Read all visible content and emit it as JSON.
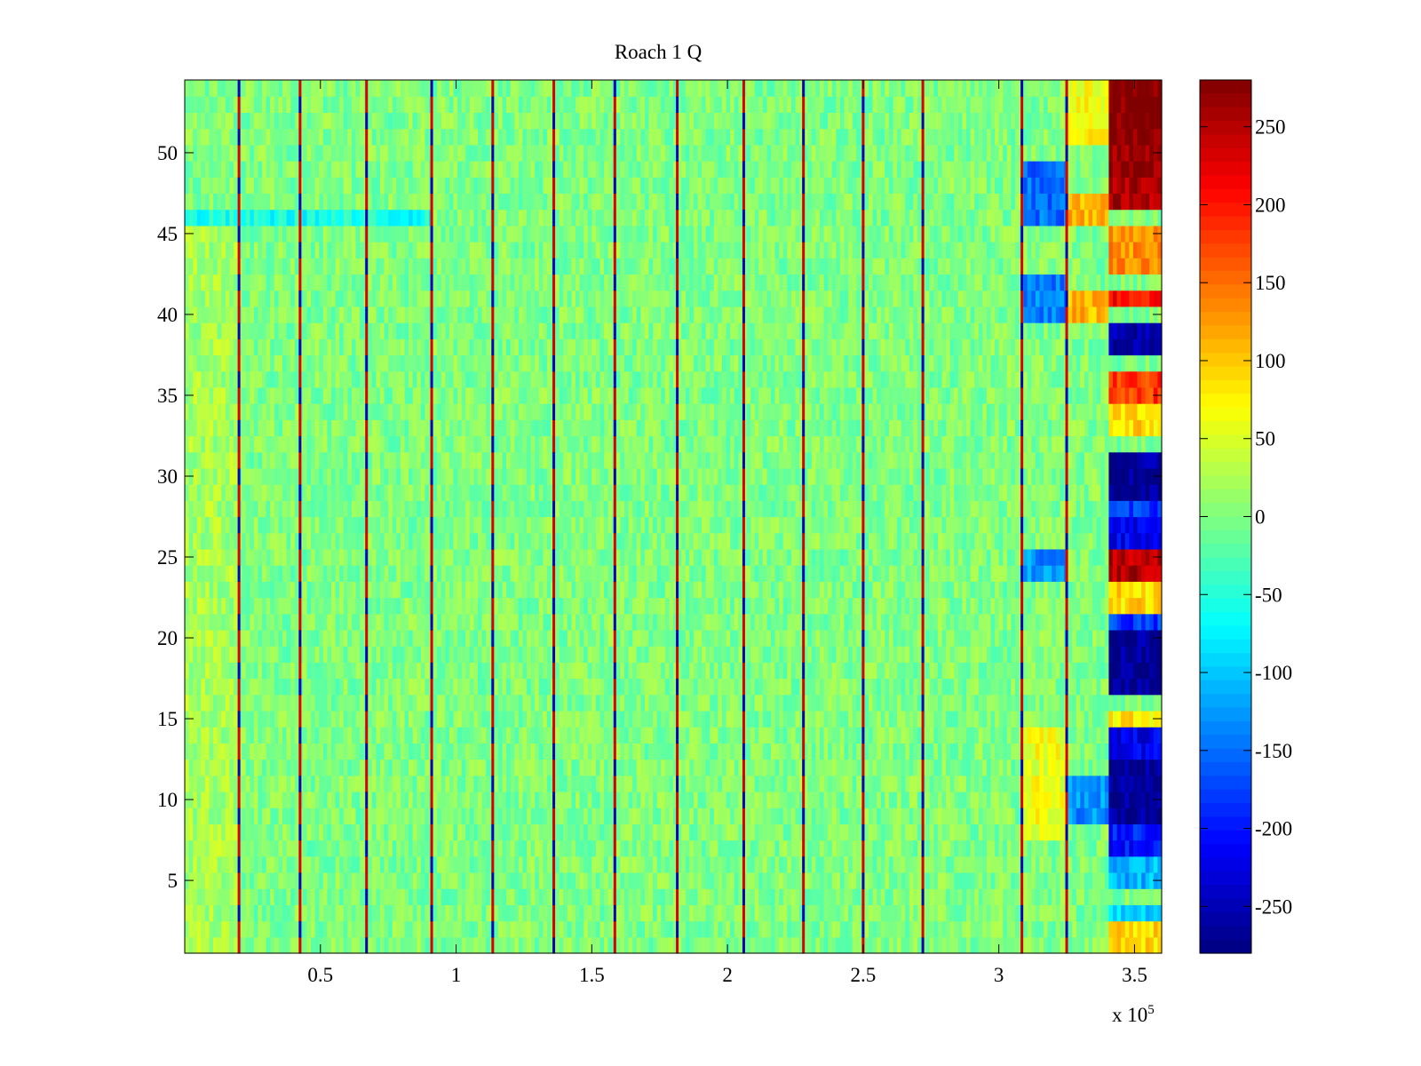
{
  "chart_data": {
    "type": "heatmap",
    "title": "Roach 1 Q",
    "xlabel": "",
    "ylabel": "",
    "xlim": [
      0,
      360000
    ],
    "ylim": [
      0.5,
      54.5
    ],
    "x_multiplier_label": "x 10",
    "x_multiplier_exponent": "5",
    "x_ticks": [
      {
        "value": 50000,
        "label": "0.5"
      },
      {
        "value": 100000,
        "label": "1"
      },
      {
        "value": 150000,
        "label": "1.5"
      },
      {
        "value": 200000,
        "label": "2"
      },
      {
        "value": 250000,
        "label": "2.5"
      },
      {
        "value": 300000,
        "label": "3"
      },
      {
        "value": 350000,
        "label": "3.5"
      }
    ],
    "y_ticks": [
      {
        "value": 5,
        "label": "5"
      },
      {
        "value": 10,
        "label": "10"
      },
      {
        "value": 15,
        "label": "15"
      },
      {
        "value": 20,
        "label": "20"
      },
      {
        "value": 25,
        "label": "25"
      },
      {
        "value": 30,
        "label": "30"
      },
      {
        "value": 35,
        "label": "35"
      },
      {
        "value": 40,
        "label": "40"
      },
      {
        "value": 45,
        "label": "45"
      },
      {
        "value": 50,
        "label": "50"
      }
    ],
    "colorbar": {
      "colormap": "jet",
      "clim": [
        -280,
        280
      ],
      "ticks": [
        {
          "value": 250,
          "label": "250"
        },
        {
          "value": 200,
          "label": "200"
        },
        {
          "value": 150,
          "label": "150"
        },
        {
          "value": 100,
          "label": "100"
        },
        {
          "value": 50,
          "label": "50"
        },
        {
          "value": 0,
          "label": "0"
        },
        {
          "value": -50,
          "label": "-50"
        },
        {
          "value": -100,
          "label": "-100"
        },
        {
          "value": -150,
          "label": "-150"
        },
        {
          "value": -200,
          "label": "-200"
        },
        {
          "value": -250,
          "label": "-250"
        }
      ]
    },
    "rows": 54,
    "background_level": 0,
    "spike_columns_x": [
      20000,
      42500,
      67000,
      91000,
      113500,
      136000,
      158500,
      181500,
      206000,
      228000,
      250000,
      272000,
      308500,
      325000
    ],
    "regions": [
      {
        "x": [
          0,
          20000
        ],
        "y": [
          1,
          45
        ],
        "level": 20
      },
      {
        "x": [
          0,
          91000
        ],
        "y": [
          46,
          46
        ],
        "level": -60
      },
      {
        "x": [
          308500,
          325000
        ],
        "y": [
          46,
          49
        ],
        "level": -150
      },
      {
        "x": [
          308500,
          325000
        ],
        "y": [
          40,
          42
        ],
        "level": -140
      },
      {
        "x": [
          308500,
          325000
        ],
        "y": [
          24,
          25
        ],
        "level": -130
      },
      {
        "x": [
          308500,
          325000
        ],
        "y": [
          8,
          14
        ],
        "level": 60
      },
      {
        "x": [
          325000,
          341000
        ],
        "y": [
          51,
          54
        ],
        "level": 70
      },
      {
        "x": [
          325000,
          341000
        ],
        "y": [
          46,
          47
        ],
        "level": 110
      },
      {
        "x": [
          325000,
          341000
        ],
        "y": [
          40,
          41
        ],
        "level": 110
      },
      {
        "x": [
          325000,
          341000
        ],
        "y": [
          9,
          11
        ],
        "level": -130
      },
      {
        "x": [
          341000,
          360000
        ],
        "y": [
          51,
          54
        ],
        "level": 280
      },
      {
        "x": [
          341000,
          360000
        ],
        "y": [
          47,
          50
        ],
        "level": 260
      },
      {
        "x": [
          341000,
          360000
        ],
        "y": [
          43,
          45
        ],
        "level": 130
      },
      {
        "x": [
          341000,
          360000
        ],
        "y": [
          41,
          41
        ],
        "level": 200
      },
      {
        "x": [
          341000,
          360000
        ],
        "y": [
          38,
          39
        ],
        "level": -260
      },
      {
        "x": [
          341000,
          360000
        ],
        "y": [
          35,
          36
        ],
        "level": 180
      },
      {
        "x": [
          341000,
          360000
        ],
        "y": [
          33,
          34
        ],
        "level": 90
      },
      {
        "x": [
          341000,
          360000
        ],
        "y": [
          29,
          31
        ],
        "level": -270
      },
      {
        "x": [
          341000,
          360000
        ],
        "y": [
          28,
          28
        ],
        "level": -180
      },
      {
        "x": [
          341000,
          360000
        ],
        "y": [
          26,
          27
        ],
        "level": -220
      },
      {
        "x": [
          341000,
          360000
        ],
        "y": [
          24,
          25
        ],
        "level": 250
      },
      {
        "x": [
          341000,
          360000
        ],
        "y": [
          22,
          23
        ],
        "level": 90
      },
      {
        "x": [
          341000,
          360000
        ],
        "y": [
          21,
          21
        ],
        "level": -180
      },
      {
        "x": [
          341000,
          360000
        ],
        "y": [
          17,
          20
        ],
        "level": -270
      },
      {
        "x": [
          341000,
          360000
        ],
        "y": [
          15,
          15
        ],
        "level": 80
      },
      {
        "x": [
          341000,
          360000
        ],
        "y": [
          13,
          14
        ],
        "level": -220
      },
      {
        "x": [
          341000,
          360000
        ],
        "y": [
          9,
          12
        ],
        "level": -270
      },
      {
        "x": [
          341000,
          360000
        ],
        "y": [
          7,
          8
        ],
        "level": -200
      },
      {
        "x": [
          341000,
          360000
        ],
        "y": [
          5,
          6
        ],
        "level": -110
      },
      {
        "x": [
          341000,
          360000
        ],
        "y": [
          3,
          3
        ],
        "level": -90
      },
      {
        "x": [
          341000,
          360000
        ],
        "y": [
          1,
          2
        ],
        "level": 90
      }
    ]
  }
}
